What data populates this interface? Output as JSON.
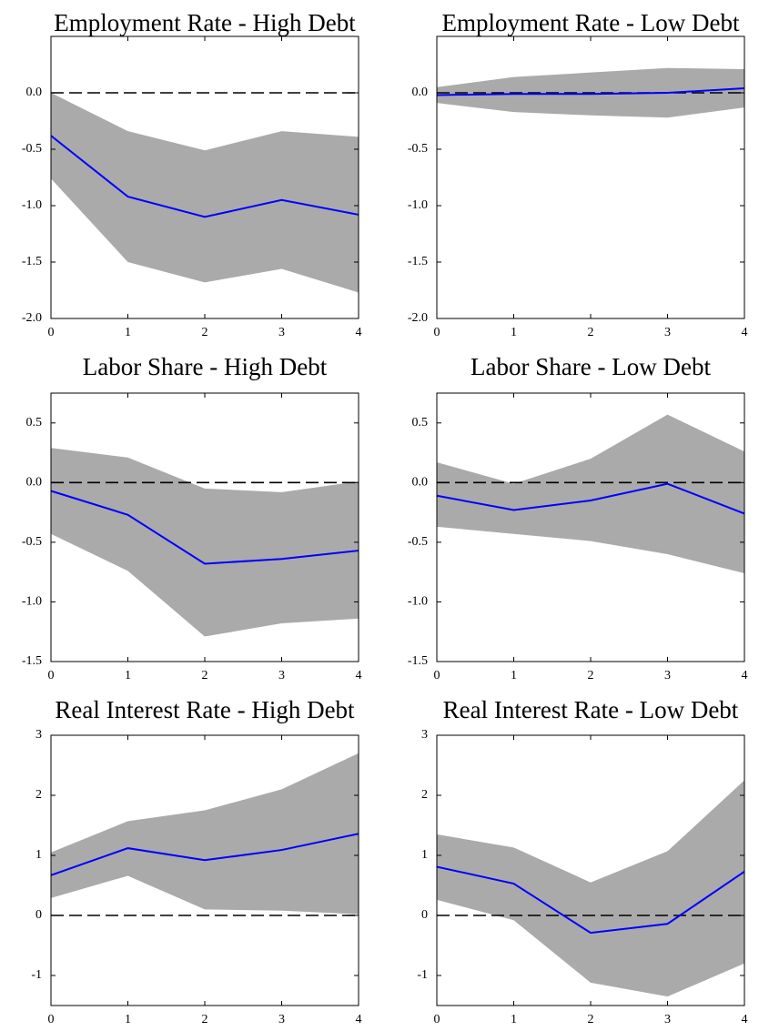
{
  "chart_data": [
    {
      "type": "line",
      "title": "Employment Rate - High Debt",
      "x": [
        0,
        1,
        2,
        3,
        4
      ],
      "values": [
        -0.38,
        -0.92,
        -1.1,
        -0.95,
        -1.08
      ],
      "lower": [
        -0.76,
        -1.5,
        -1.68,
        -1.56,
        -1.77
      ],
      "upper": [
        0.0,
        -0.34,
        -0.51,
        -0.34,
        -0.39
      ],
      "color": "#0000ff",
      "band_color": "#aaaaaa",
      "hline": 0,
      "xlim": [
        0,
        4
      ],
      "xticks": [
        0,
        1,
        2,
        3,
        4
      ],
      "ylim": [
        -2,
        0.5
      ],
      "yticks": [
        {
          "value": 0,
          "label": "0.0"
        },
        -0.5,
        {
          "value": -1,
          "label": "-1.0"
        },
        -1.5,
        {
          "value": -2,
          "label": "-2.0"
        }
      ]
    },
    {
      "type": "line",
      "title": "Employment Rate - Low Debt",
      "x": [
        0,
        1,
        2,
        3,
        4
      ],
      "values": [
        -0.02,
        -0.01,
        -0.01,
        0.0,
        0.04
      ],
      "lower": [
        -0.09,
        -0.17,
        -0.2,
        -0.22,
        -0.13
      ],
      "upper": [
        0.05,
        0.14,
        0.18,
        0.22,
        0.21
      ],
      "color": "#0000ff",
      "band_color": "#aaaaaa",
      "hline": 0,
      "xlim": [
        0,
        4
      ],
      "xticks": [
        0,
        1,
        2,
        3,
        4
      ],
      "ylim": [
        -2,
        0.5
      ],
      "yticks": [
        {
          "value": 0,
          "label": "0.0"
        },
        -0.5,
        {
          "value": -1,
          "label": "-1.0"
        },
        -1.5,
        {
          "value": -2,
          "label": "-2.0"
        }
      ]
    },
    {
      "type": "line",
      "title": "Labor Share - High Debt",
      "x": [
        0,
        1,
        2,
        3,
        4
      ],
      "values": [
        -0.07,
        -0.27,
        -0.68,
        -0.64,
        -0.57
      ],
      "lower": [
        -0.43,
        -0.74,
        -1.29,
        -1.18,
        -1.14
      ],
      "upper": [
        0.29,
        0.21,
        -0.05,
        -0.08,
        0.01
      ],
      "color": "#0000ff",
      "band_color": "#aaaaaa",
      "hline": 0,
      "xlim": [
        0,
        4
      ],
      "xticks": [
        0,
        1,
        2,
        3,
        4
      ],
      "ylim": [
        -1.5,
        0.75
      ],
      "yticks": [
        0.5,
        {
          "value": 0,
          "label": "0.0"
        },
        -0.5,
        {
          "value": -1,
          "label": "-1.0"
        },
        -1.5
      ]
    },
    {
      "type": "line",
      "title": "Labor Share - Low Debt",
      "x": [
        0,
        1,
        2,
        3,
        4
      ],
      "values": [
        -0.11,
        -0.23,
        -0.15,
        -0.01,
        -0.26
      ],
      "lower": [
        -0.37,
        -0.43,
        -0.49,
        -0.6,
        -0.76
      ],
      "upper": [
        0.17,
        -0.01,
        0.2,
        0.57,
        0.26
      ],
      "color": "#0000ff",
      "band_color": "#aaaaaa",
      "hline": 0,
      "xlim": [
        0,
        4
      ],
      "xticks": [
        0,
        1,
        2,
        3,
        4
      ],
      "ylim": [
        -1.5,
        0.75
      ],
      "yticks": [
        0.5,
        {
          "value": 0,
          "label": "0.0"
        },
        -0.5,
        {
          "value": -1,
          "label": "-1.0"
        },
        -1.5
      ]
    },
    {
      "type": "line",
      "title": "Real Interest Rate - High Debt",
      "x": [
        0,
        1,
        2,
        3,
        4
      ],
      "values": [
        0.67,
        1.12,
        0.92,
        1.09,
        1.36
      ],
      "lower": [
        0.29,
        0.66,
        0.1,
        0.08,
        0.02
      ],
      "upper": [
        1.05,
        1.57,
        1.75,
        2.1,
        2.7
      ],
      "color": "#0000ff",
      "band_color": "#aaaaaa",
      "hline": 0,
      "xlim": [
        0,
        4
      ],
      "xticks": [
        0,
        1,
        2,
        3,
        4
      ],
      "ylim": [
        -1.5,
        3
      ],
      "yticks": [
        3,
        2,
        1,
        0,
        -1
      ]
    },
    {
      "type": "line",
      "title": "Real Interest Rate - Low Debt",
      "x": [
        0,
        1,
        2,
        3,
        4
      ],
      "values": [
        0.81,
        0.53,
        -0.29,
        -0.14,
        0.73
      ],
      "lower": [
        0.26,
        -0.08,
        -1.12,
        -1.35,
        -0.8
      ],
      "upper": [
        1.35,
        1.13,
        0.55,
        1.07,
        2.25
      ],
      "color": "#0000ff",
      "band_color": "#aaaaaa",
      "hline": 0,
      "xlim": [
        0,
        4
      ],
      "xticks": [
        0,
        1,
        2,
        3,
        4
      ],
      "ylim": [
        -1.5,
        3
      ],
      "yticks": [
        3,
        2,
        1,
        0,
        -1
      ]
    }
  ]
}
